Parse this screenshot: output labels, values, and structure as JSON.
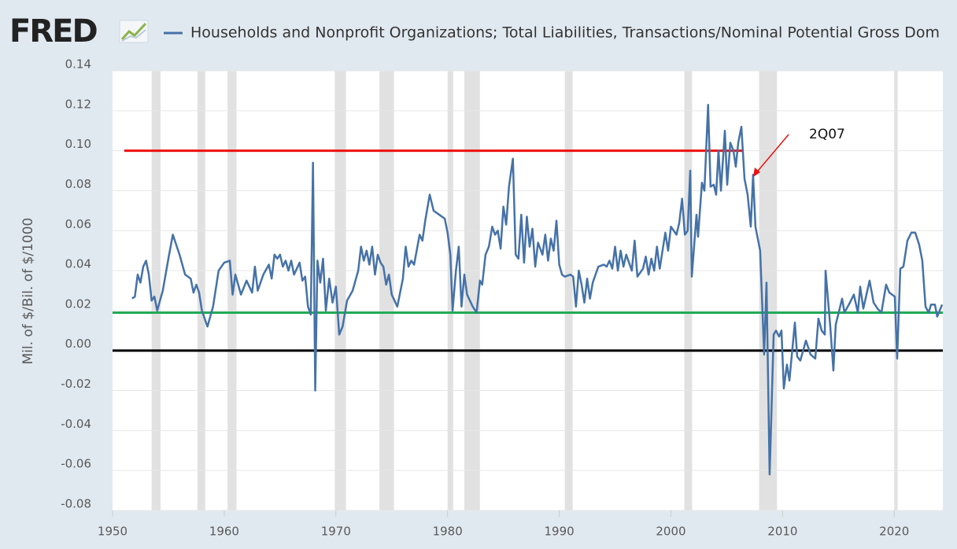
{
  "chart_data": {
    "type": "line",
    "logo": "FRED",
    "ylabel": "Mil. of $/Bil. of $/1000",
    "xlim": [
      1950,
      2024.35
    ],
    "ylim": [
      -0.08,
      0.14
    ],
    "xticks": [
      1950,
      1960,
      1970,
      1980,
      1990,
      2000,
      2010,
      2020
    ],
    "yticks": [
      {
        "value": -0.08,
        "label": "-0.08"
      },
      {
        "value": -0.06,
        "label": "-0.06"
      },
      {
        "value": -0.04,
        "label": "-0.04"
      },
      {
        "value": -0.02,
        "label": "-0.02"
      },
      {
        "value": 0,
        "label": "0.00"
      },
      {
        "value": 0.02,
        "label": "0.02"
      },
      {
        "value": 0.04,
        "label": "0.04"
      },
      {
        "value": 0.06,
        "label": "0.06"
      },
      {
        "value": 0.08,
        "label": "0.08"
      },
      {
        "value": 0.1,
        "label": "0.10"
      },
      {
        "value": 0.12,
        "label": "0.12"
      },
      {
        "value": 0.14,
        "label": "0.14"
      }
    ],
    "grid": true,
    "recessions": [
      [
        1953.5,
        1954.3
      ],
      [
        1957.6,
        1958.3
      ],
      [
        1960.3,
        1961.1
      ],
      [
        1969.9,
        1970.9
      ],
      [
        1973.9,
        1975.2
      ],
      [
        1980.0,
        1980.5
      ],
      [
        1981.5,
        1982.9
      ],
      [
        1990.5,
        1991.2
      ],
      [
        2001.2,
        2001.9
      ],
      [
        2007.9,
        2009.5
      ],
      [
        2020.0,
        2020.3
      ]
    ],
    "reference_lines": [
      {
        "value": 0.1,
        "color": "#ee1111",
        "x": [
          1951.05,
          2006.45
        ]
      },
      {
        "value": 0.019,
        "color": "#22aa55",
        "x": [
          1950,
          2024.35
        ]
      },
      {
        "value": 0,
        "color": "#000000",
        "x": [
          1950,
          2024.35
        ]
      }
    ],
    "annotations": [
      {
        "text": "2Q07"
      }
    ],
    "x": [
      1951.75,
      1952.0,
      1952.25,
      1952.5,
      1952.75,
      1953.0,
      1953.25,
      1953.5,
      1953.75,
      1954.0,
      1954.5,
      1955.0,
      1955.4,
      1956.0,
      1956.5,
      1957.0,
      1957.25,
      1957.5,
      1957.75,
      1958.0,
      1958.5,
      1959.0,
      1959.5,
      1960.0,
      1960.5,
      1960.75,
      1961.0,
      1961.5,
      1962.0,
      1962.5,
      1962.75,
      1963.0,
      1963.5,
      1964.0,
      1964.25,
      1964.5,
      1964.75,
      1965.0,
      1965.25,
      1965.5,
      1965.75,
      1966.0,
      1966.25,
      1966.5,
      1966.75,
      1967.0,
      1967.25,
      1967.5,
      1967.75,
      1967.95,
      1968.15,
      1968.35,
      1968.6,
      1968.85,
      1969.1,
      1969.4,
      1969.7,
      1970.0,
      1970.3,
      1970.6,
      1971.0,
      1971.5,
      1972.0,
      1972.25,
      1972.5,
      1972.75,
      1973.0,
      1973.25,
      1973.5,
      1973.75,
      1974.0,
      1974.25,
      1974.5,
      1974.75,
      1975.0,
      1975.5,
      1976.0,
      1976.25,
      1976.5,
      1976.75,
      1977.0,
      1977.5,
      1977.75,
      1978.0,
      1978.4,
      1978.75,
      1979.25,
      1979.75,
      1980.0,
      1980.25,
      1980.45,
      1980.75,
      1981.0,
      1981.25,
      1981.5,
      1981.75,
      1982.25,
      1982.6,
      1982.9,
      1983.1,
      1983.4,
      1983.7,
      1984.0,
      1984.25,
      1984.5,
      1984.75,
      1985.0,
      1985.25,
      1985.5,
      1985.85,
      1986.1,
      1986.35,
      1986.6,
      1986.85,
      1987.1,
      1987.35,
      1987.6,
      1987.85,
      1988.1,
      1988.5,
      1988.75,
      1989.0,
      1989.25,
      1989.5,
      1989.75,
      1990.0,
      1990.25,
      1990.5,
      1991.0,
      1991.25,
      1991.5,
      1991.75,
      1992.0,
      1992.25,
      1992.5,
      1992.75,
      1993.0,
      1993.5,
      1994.0,
      1994.25,
      1994.5,
      1994.75,
      1995.0,
      1995.25,
      1995.5,
      1995.75,
      1996.0,
      1996.5,
      1996.75,
      1997.0,
      1997.5,
      1997.75,
      1998.0,
      1998.25,
      1998.5,
      1998.75,
      1999.0,
      1999.5,
      1999.75,
      2000.0,
      2000.25,
      2000.5,
      2000.75,
      2001.0,
      2001.25,
      2001.5,
      2001.73,
      2001.87,
      2002.29,
      2002.43,
      2002.78,
      2003.0,
      2003.33,
      2003.55,
      2003.84,
      2004.05,
      2004.26,
      2004.48,
      2004.83,
      2005.04,
      2005.32,
      2005.6,
      2005.81,
      2006.03,
      2006.31,
      2006.59,
      2006.87,
      2007.15,
      2007.36,
      2007.57,
      2007.99,
      2008.35,
      2008.56,
      2008.84,
      2009.2,
      2009.41,
      2009.69,
      2009.9,
      2010.11,
      2010.39,
      2010.61,
      2011.1,
      2011.31,
      2011.59,
      2012.09,
      2012.51,
      2012.93,
      2013.21,
      2013.5,
      2013.78,
      2013.85,
      2014.27,
      2014.55,
      2014.76,
      2015.33,
      2015.54,
      2016.03,
      2016.38,
      2016.74,
      2016.95,
      2017.23,
      2017.79,
      2018.15,
      2018.5,
      2018.85,
      2019.27,
      2019.56,
      2020.05,
      2020.26,
      2020.54,
      2020.82,
      2021.18,
      2021.53,
      2021.88,
      2022.23,
      2022.51,
      2022.8,
      2023.08,
      2023.29,
      2023.64,
      2023.85,
      2024.28
    ],
    "series": [
      {
        "name": "Households and Nonprofit Organizations; Total Liabilities, Transactions/Nominal Potential Gross Dom",
        "color": "#4572a7",
        "values": [
          0.026,
          0.027,
          0.038,
          0.034,
          0.042,
          0.045,
          0.038,
          0.025,
          0.027,
          0.02,
          0.03,
          0.046,
          0.058,
          0.048,
          0.038,
          0.036,
          0.029,
          0.033,
          0.029,
          0.02,
          0.012,
          0.022,
          0.04,
          0.044,
          0.045,
          0.028,
          0.038,
          0.028,
          0.035,
          0.029,
          0.042,
          0.03,
          0.038,
          0.043,
          0.036,
          0.048,
          0.046,
          0.048,
          0.042,
          0.045,
          0.04,
          0.045,
          0.038,
          0.041,
          0.044,
          0.035,
          0.037,
          0.022,
          0.018,
          0.094,
          -0.02,
          0.045,
          0.034,
          0.046,
          0.02,
          0.036,
          0.024,
          0.032,
          0.008,
          0.012,
          0.025,
          0.03,
          0.04,
          0.052,
          0.045,
          0.05,
          0.043,
          0.052,
          0.038,
          0.048,
          0.044,
          0.042,
          0.033,
          0.038,
          0.028,
          0.022,
          0.036,
          0.052,
          0.042,
          0.045,
          0.043,
          0.058,
          0.055,
          0.065,
          0.078,
          0.07,
          0.068,
          0.066,
          0.059,
          0.048,
          0.02,
          0.04,
          0.052,
          0.022,
          0.038,
          0.028,
          0.022,
          0.019,
          0.035,
          0.033,
          0.048,
          0.052,
          0.062,
          0.058,
          0.06,
          0.051,
          0.072,
          0.063,
          0.082,
          0.096,
          0.048,
          0.046,
          0.068,
          0.044,
          0.067,
          0.052,
          0.061,
          0.042,
          0.054,
          0.048,
          0.058,
          0.045,
          0.056,
          0.05,
          0.065,
          0.043,
          0.038,
          0.037,
          0.038,
          0.037,
          0.022,
          0.04,
          0.033,
          0.024,
          0.036,
          0.026,
          0.034,
          0.042,
          0.043,
          0.042,
          0.045,
          0.041,
          0.052,
          0.04,
          0.05,
          0.042,
          0.048,
          0.04,
          0.055,
          0.037,
          0.041,
          0.047,
          0.038,
          0.046,
          0.04,
          0.052,
          0.041,
          0.059,
          0.05,
          0.062,
          0.06,
          0.058,
          0.064,
          0.076,
          0.058,
          0.06,
          0.09,
          0.037,
          0.068,
          0.057,
          0.084,
          0.08,
          0.123,
          0.082,
          0.083,
          0.078,
          0.1,
          0.08,
          0.11,
          0.083,
          0.104,
          0.1,
          0.092,
          0.104,
          0.112,
          0.086,
          0.078,
          0.062,
          0.088,
          0.062,
          0.05,
          -0.002,
          0.034,
          -0.062,
          0.008,
          0.01,
          0.007,
          0.01,
          -0.019,
          -0.007,
          -0.015,
          0.014,
          -0.003,
          -0.005,
          0.005,
          -0.002,
          -0.004,
          0.016,
          0.01,
          0.008,
          0.04,
          0.012,
          -0.01,
          0.013,
          0.026,
          0.019,
          0.024,
          0.028,
          0.019,
          0.032,
          0.021,
          0.035,
          0.024,
          0.021,
          0.019,
          0.033,
          0.029,
          0.027,
          -0.004,
          0.041,
          0.042,
          0.055,
          0.059,
          0.059,
          0.053,
          0.045,
          0.022,
          0.019,
          0.023,
          0.023,
          0.017,
          0.023
        ]
      }
    ]
  }
}
